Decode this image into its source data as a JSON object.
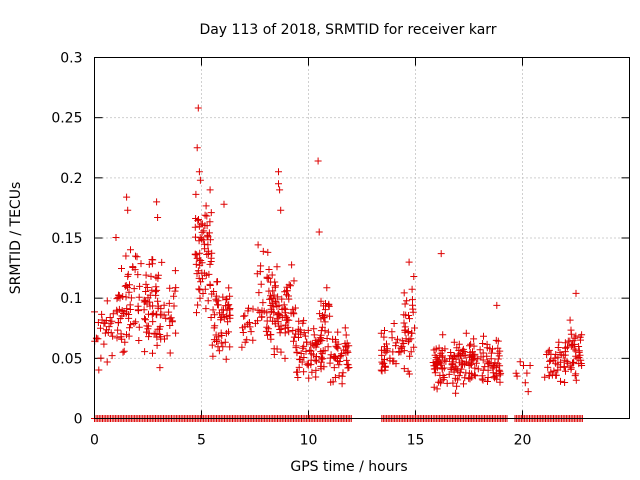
{
  "chart_data": {
    "type": "scatter",
    "title": "Day 113 of 2018, SRMTID for receiver karr",
    "xlabel": "GPS time / hours",
    "ylabel": "SRMTID / TECUs",
    "xlim": [
      0,
      25
    ],
    "ylim": [
      0,
      0.3
    ],
    "xticks": [
      0,
      5,
      10,
      15,
      20
    ],
    "xtick_labels": [
      "0",
      "5",
      "10",
      "15",
      "20"
    ],
    "yticks": [
      0,
      0.05,
      0.1,
      0.15,
      0.2,
      0.25,
      0.3
    ],
    "ytick_labels": [
      "0",
      "0.05",
      "0.1",
      "0.15",
      "0.2",
      "0.25",
      "0.3"
    ],
    "grid": true,
    "marker": "+",
    "color": "#dd0000",
    "series": [
      {
        "name": "SRMTID",
        "clusters": [
          {
            "x": [
              0.0,
              0.9
            ],
            "center": 0.072,
            "spread": 0.025,
            "n": 28
          },
          {
            "x": [
              1.0,
              2.0
            ],
            "center": 0.098,
            "spread": 0.035,
            "n": 55
          },
          {
            "x": [
              2.0,
              3.0
            ],
            "center": 0.095,
            "spread": 0.035,
            "n": 60
          },
          {
            "x": [
              3.0,
              3.8
            ],
            "center": 0.085,
            "spread": 0.03,
            "n": 30
          },
          {
            "x": [
              4.7,
              5.5
            ],
            "center": 0.135,
            "spread": 0.04,
            "n": 70
          },
          {
            "x": [
              5.5,
              6.4
            ],
            "center": 0.085,
            "spread": 0.03,
            "n": 55
          },
          {
            "x": [
              6.8,
              7.6
            ],
            "center": 0.075,
            "spread": 0.02,
            "n": 18
          },
          {
            "x": [
              7.6,
              8.5
            ],
            "center": 0.1,
            "spread": 0.035,
            "n": 55
          },
          {
            "x": [
              8.5,
              9.4
            ],
            "center": 0.085,
            "spread": 0.03,
            "n": 55
          },
          {
            "x": [
              9.4,
              10.4
            ],
            "center": 0.055,
            "spread": 0.02,
            "n": 55
          },
          {
            "x": [
              10.4,
              11.0
            ],
            "center": 0.07,
            "spread": 0.025,
            "n": 40
          },
          {
            "x": [
              11.0,
              11.9
            ],
            "center": 0.05,
            "spread": 0.017,
            "n": 45
          },
          {
            "x": [
              13.4,
              14.4
            ],
            "center": 0.055,
            "spread": 0.017,
            "n": 40
          },
          {
            "x": [
              14.4,
              15.0
            ],
            "center": 0.075,
            "spread": 0.03,
            "n": 35
          },
          {
            "x": [
              15.8,
              17.0
            ],
            "center": 0.045,
            "spread": 0.017,
            "n": 75
          },
          {
            "x": [
              17.0,
              18.2
            ],
            "center": 0.048,
            "spread": 0.017,
            "n": 65
          },
          {
            "x": [
              18.2,
              19.0
            ],
            "center": 0.045,
            "spread": 0.017,
            "n": 40
          },
          {
            "x": [
              19.7,
              20.4
            ],
            "center": 0.035,
            "spread": 0.012,
            "n": 8
          },
          {
            "x": [
              21.0,
              22.0
            ],
            "center": 0.048,
            "spread": 0.015,
            "n": 35
          },
          {
            "x": [
              22.0,
              22.8
            ],
            "center": 0.055,
            "spread": 0.02,
            "n": 45
          }
        ],
        "outliers": [
          {
            "x": 4.85,
            "y": 0.258
          },
          {
            "x": 4.8,
            "y": 0.225
          },
          {
            "x": 4.9,
            "y": 0.205
          },
          {
            "x": 4.95,
            "y": 0.198
          },
          {
            "x": 8.6,
            "y": 0.205
          },
          {
            "x": 8.6,
            "y": 0.195
          },
          {
            "x": 8.65,
            "y": 0.19
          },
          {
            "x": 8.7,
            "y": 0.173
          },
          {
            "x": 10.45,
            "y": 0.214
          },
          {
            "x": 10.5,
            "y": 0.155
          },
          {
            "x": 1.5,
            "y": 0.184
          },
          {
            "x": 1.55,
            "y": 0.173
          },
          {
            "x": 2.9,
            "y": 0.18
          },
          {
            "x": 2.95,
            "y": 0.167
          },
          {
            "x": 6.05,
            "y": 0.178
          },
          {
            "x": 16.2,
            "y": 0.137
          },
          {
            "x": 14.7,
            "y": 0.13
          },
          {
            "x": 18.8,
            "y": 0.094
          },
          {
            "x": 22.5,
            "y": 0.104
          }
        ],
        "zero_baseline": {
          "x": [
            0.0,
            22.8
          ],
          "y": 0,
          "gaps": [
            [
              12.0,
              13.4
            ],
            [
              19.3,
              19.6
            ]
          ]
        }
      }
    ]
  }
}
